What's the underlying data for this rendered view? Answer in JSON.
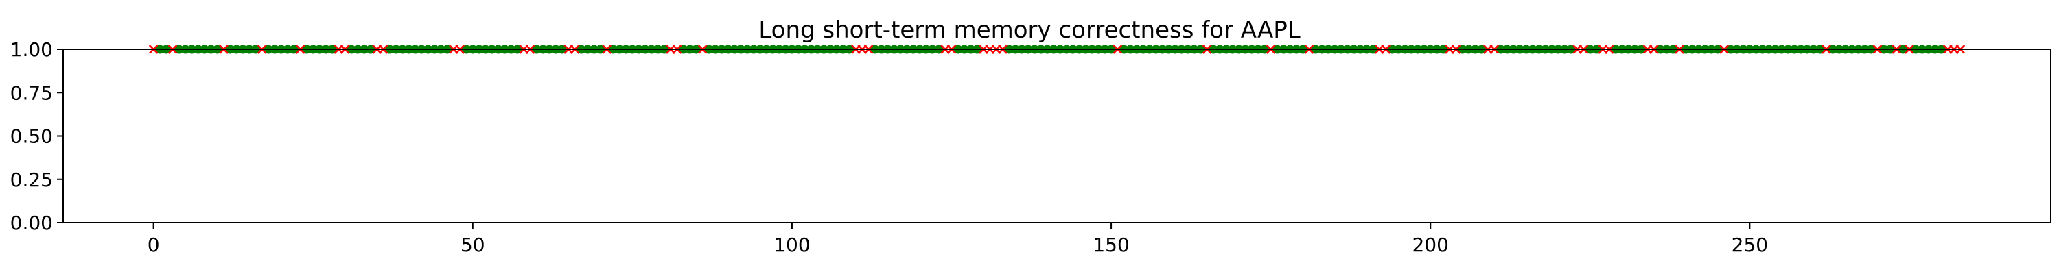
{
  "chart_data": {
    "type": "scatter",
    "title": "Long short-term memory correctness for AAPL",
    "xlabel": "",
    "ylabel": "",
    "xlim": [
      -14.15,
      297.15
    ],
    "ylim": [
      0.0,
      1.0
    ],
    "x_ticks": [
      0,
      50,
      100,
      150,
      200,
      250
    ],
    "y_ticks": [
      0.0,
      0.25,
      0.5,
      0.75,
      1.0
    ],
    "x_tick_labels": [
      "0",
      "50",
      "100",
      "150",
      "200",
      "250"
    ],
    "y_tick_labels": [
      "0.00",
      "0.25",
      "0.50",
      "0.75",
      "1.00"
    ],
    "grid": false,
    "legend": "none",
    "n_points": 284,
    "y_value": 1.0,
    "series": [
      {
        "marker": "circle",
        "color": "#008000",
        "x": [
          1,
          2,
          4,
          5,
          6,
          7,
          8,
          9,
          10,
          12,
          13,
          14,
          15,
          16,
          18,
          19,
          20,
          21,
          22,
          24,
          25,
          26,
          27,
          28,
          31,
          32,
          33,
          34,
          37,
          38,
          39,
          40,
          41,
          42,
          43,
          44,
          45,
          46,
          49,
          50,
          51,
          52,
          53,
          54,
          55,
          56,
          57,
          60,
          61,
          62,
          63,
          64,
          67,
          68,
          69,
          70,
          72,
          73,
          74,
          75,
          76,
          77,
          78,
          79,
          80,
          83,
          84,
          85,
          87,
          88,
          89,
          90,
          91,
          92,
          93,
          94,
          95,
          96,
          97,
          98,
          99,
          100,
          101,
          102,
          103,
          104,
          105,
          106,
          107,
          108,
          109,
          113,
          114,
          115,
          116,
          117,
          118,
          119,
          120,
          121,
          122,
          123,
          126,
          127,
          128,
          129,
          134,
          135,
          136,
          137,
          138,
          139,
          140,
          141,
          142,
          143,
          144,
          145,
          146,
          147,
          148,
          149,
          150,
          152,
          153,
          154,
          155,
          156,
          157,
          158,
          159,
          160,
          161,
          162,
          163,
          164,
          166,
          167,
          168,
          169,
          170,
          171,
          172,
          173,
          174,
          176,
          177,
          178,
          179,
          180,
          182,
          183,
          184,
          185,
          186,
          187,
          188,
          189,
          190,
          191,
          194,
          195,
          196,
          197,
          198,
          199,
          200,
          201,
          202,
          205,
          206,
          207,
          208,
          211,
          212,
          213,
          214,
          215,
          216,
          217,
          218,
          219,
          220,
          221,
          222,
          225,
          226,
          229,
          230,
          231,
          232,
          233,
          236,
          237,
          238,
          240,
          241,
          242,
          243,
          244,
          245,
          247,
          248,
          249,
          250,
          251,
          252,
          253,
          254,
          255,
          256,
          257,
          258,
          259,
          260,
          261,
          263,
          264,
          265,
          266,
          267,
          268,
          269,
          271,
          272,
          274,
          276,
          277,
          278,
          279,
          280
        ]
      },
      {
        "marker": "x",
        "color": "#ff0000",
        "x": [
          0,
          3,
          11,
          17,
          23,
          29,
          30,
          35,
          36,
          47,
          48,
          58,
          59,
          65,
          66,
          71,
          81,
          82,
          86,
          110,
          111,
          112,
          124,
          125,
          130,
          131,
          132,
          133,
          151,
          165,
          175,
          181,
          192,
          193,
          203,
          204,
          209,
          210,
          223,
          224,
          227,
          228,
          234,
          235,
          239,
          246,
          262,
          270,
          273,
          275,
          281,
          282,
          283
        ]
      }
    ]
  }
}
